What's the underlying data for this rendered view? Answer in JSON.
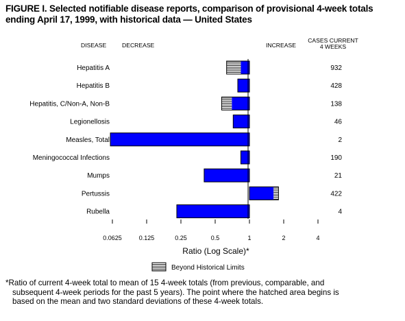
{
  "title_lines": [
    "FIGURE I. Selected notifiable disease reports, comparison of provisional 4-week totals",
    "ending April 17, 1999, with historical data — United States"
  ],
  "chart_data": {
    "type": "bar",
    "orientation": "horizontal",
    "scale": "log2",
    "headers": {
      "disease": "DISEASE",
      "decrease": "DECREASE",
      "increase": "INCREASE",
      "cases_line1": "CASES CURRENT",
      "cases_line2": "4 WEEKS"
    },
    "categories": [
      "Hepatitis A",
      "Hepatitis B",
      "Hepatitis, C/Non-A, Non-B",
      "Legionellosis",
      "Measles, Total",
      "Meningococcal Infections",
      "Mumps",
      "Pertussis",
      "Rubella"
    ],
    "ratios": [
      0.63,
      0.79,
      0.57,
      0.72,
      0.06,
      0.84,
      0.4,
      1.8,
      0.23
    ],
    "hatch_begins_at": [
      0.84,
      null,
      0.7,
      null,
      null,
      null,
      null,
      1.63,
      null
    ],
    "cases_current_4_weeks": [
      "932",
      "428",
      "138",
      "46",
      "2",
      "190",
      "21",
      "422",
      "4"
    ],
    "x_ticks": [
      {
        "value": 0.0625,
        "label": "0.0625"
      },
      {
        "value": 0.125,
        "label": "0.125"
      },
      {
        "value": 0.25,
        "label": "0.25"
      },
      {
        "value": 0.5,
        "label": "0.5"
      },
      {
        "value": 1,
        "label": "1"
      },
      {
        "value": 2,
        "label": "2"
      },
      {
        "value": 4,
        "label": "4"
      }
    ],
    "xlim": [
      0.0625,
      4
    ],
    "xlabel": "Ratio (Log Scale)*",
    "legend": {
      "label": "Beyond Historical Limits",
      "placement": "bottom"
    },
    "colors": {
      "bar": "#0000ff",
      "hatch_fill": "#ffffff",
      "outline": "#000000"
    }
  },
  "footnote_lines": [
    "*Ratio of current 4-week total to mean of 15 4-week totals (from previous, comparable, and",
    "subsequent 4-week periods for the past 5 years). The point where the hatched area begins is",
    "based on the mean and two standard deviations of these 4-week totals."
  ]
}
